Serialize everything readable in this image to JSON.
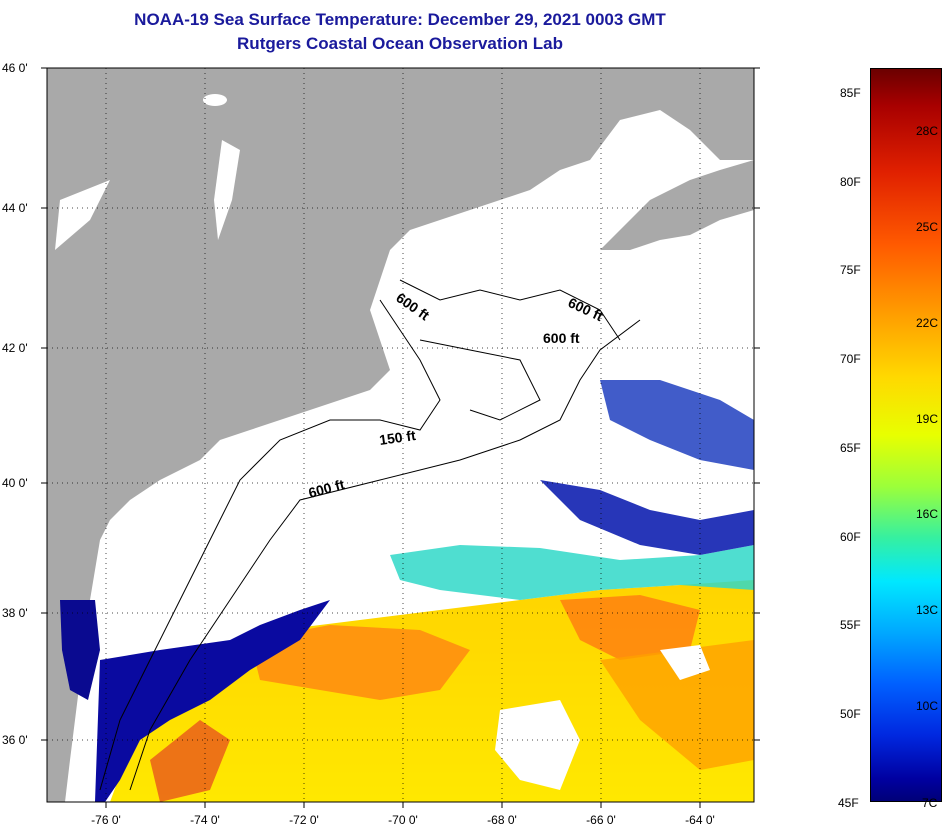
{
  "title": {
    "line1": "NOAA-19 Sea Surface Temperature:  December 29, 2021 0003 GMT",
    "line2": "Rutgers Coastal Ocean Observation Lab"
  },
  "map": {
    "lat_labels": [
      "46 0'",
      "44 0'",
      "42 0'",
      "40 0'",
      "38 0'",
      "36 0'"
    ],
    "lon_labels": [
      "-76 0'",
      "-74 0'",
      "-72 0'",
      "-70 0'",
      "-68 0'",
      "-66 0'",
      "-64 0'"
    ],
    "contour_labels": [
      "600 ft",
      "600 ft",
      "600 ft",
      "150 ft",
      "600 ft"
    ],
    "colors": {
      "land": "#a9a9a9",
      "cloud": "#ffffff",
      "cold": "#0a0a8c",
      "warm": "#ff8c00",
      "hot": "#e8461c",
      "mid": "#ffe000"
    }
  },
  "colorbar": {
    "fahrenheit": [
      "85F",
      "80F",
      "75F",
      "70F",
      "65F",
      "60F",
      "55F",
      "50F",
      "45F"
    ],
    "celsius": [
      "28C",
      "25C",
      "22C",
      "19C",
      "16C",
      "13C",
      "10C",
      "7C"
    ]
  }
}
